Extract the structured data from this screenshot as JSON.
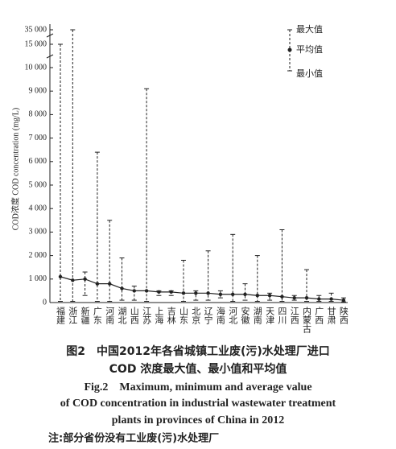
{
  "chart_data": {
    "type": "range",
    "ylabel": "COD浓度 COD concentration (mg/L)",
    "categories": [
      "福建",
      "浙江",
      "新疆",
      "广东",
      "河南",
      "湖北",
      "山西",
      "江苏",
      "上海",
      "吉林",
      "山东",
      "北京",
      "辽宁",
      "海南",
      "河北",
      "安徽",
      "湖南",
      "天津",
      "四川",
      "江西",
      "内蒙古",
      "广西",
      "甘肃",
      "陕西"
    ],
    "series": [
      {
        "name": "最大值",
        "values": [
          15000,
          35000,
          1300,
          6400,
          3500,
          1900,
          700,
          9100,
          500,
          500,
          1800,
          500,
          2200,
          500,
          2900,
          800,
          2000,
          400,
          3100,
          300,
          1400,
          300,
          400,
          200
        ]
      },
      {
        "name": "平均值",
        "values": [
          1100,
          950,
          1000,
          800,
          800,
          600,
          500,
          500,
          450,
          450,
          400,
          400,
          400,
          350,
          350,
          350,
          300,
          300,
          250,
          200,
          200,
          150,
          150,
          100
        ]
      },
      {
        "name": "最小值",
        "values": [
          50,
          50,
          300,
          50,
          50,
          100,
          100,
          50,
          300,
          300,
          50,
          100,
          100,
          200,
          50,
          100,
          50,
          100,
          50,
          100,
          50,
          50,
          50,
          30
        ]
      }
    ],
    "color": "#222222",
    "ylim": [
      0,
      35000
    ],
    "yticks": [
      0,
      {
        "value": 1000,
        "label": "1 000"
      },
      {
        "value": 2000,
        "label": "2 000"
      },
      {
        "value": 3000,
        "label": "3 000"
      },
      {
        "value": 4000,
        "label": "4 000"
      },
      {
        "value": 5000,
        "label": "5 000"
      },
      {
        "value": 6000,
        "label": "6 000"
      },
      {
        "value": 7000,
        "label": "7 000"
      },
      {
        "value": 8000,
        "label": "8 000"
      },
      {
        "value": 9000,
        "label": "9 000"
      },
      {
        "value": 10000,
        "label": "10 000"
      },
      {
        "value": 15000,
        "label": "15 000"
      },
      {
        "value": 35000,
        "label": "35 000"
      }
    ]
  },
  "caption": [
    "图2　中国2012年各省城镇工业废(污)水处理厂进口",
    "COD 浓度最大值、最小值和平均值",
    "Fig.2　Maximum, minimum and average value",
    "of COD concentration in industrial wastewater treatment",
    "plants in provinces of China in 2012"
  ],
  "note": "注:部分省份没有工业废(污)水处理厂"
}
